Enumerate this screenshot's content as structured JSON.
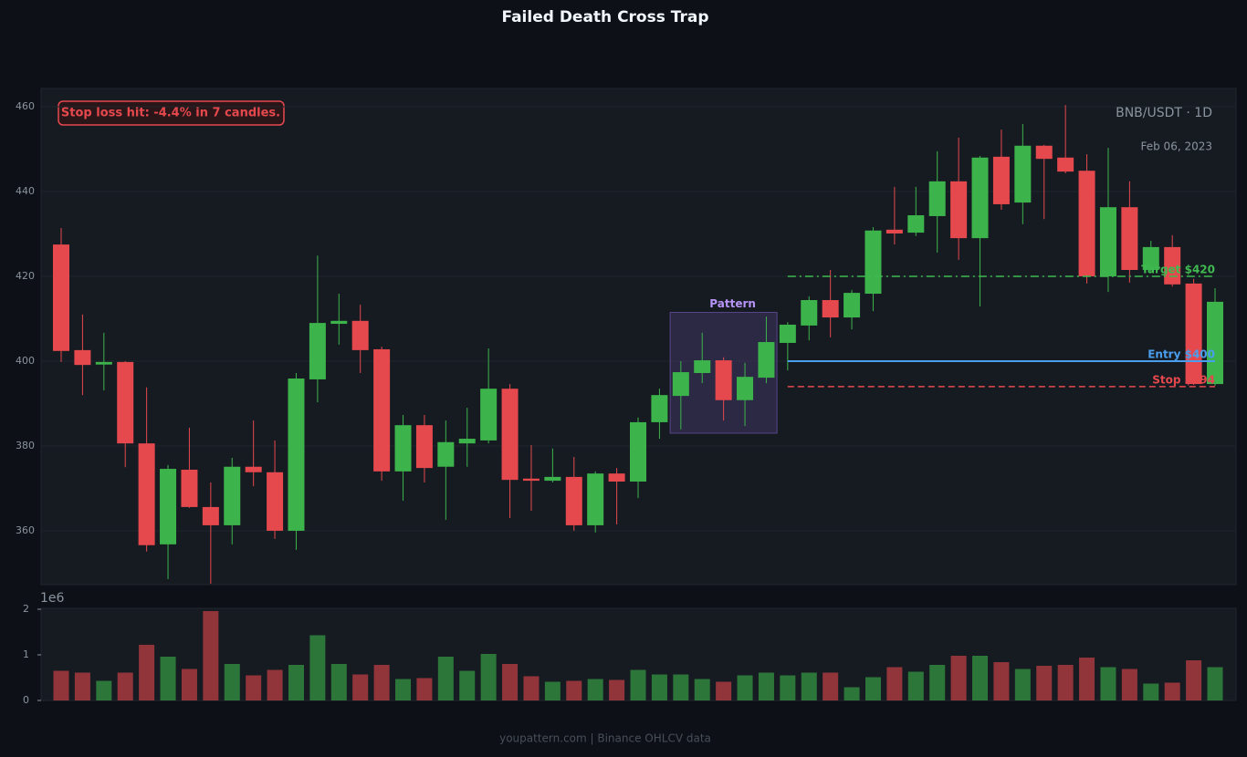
{
  "chart_data": {
    "type": "candlestick",
    "title": "Failed Death Cross Trap",
    "symbol": "BNB/USDT · 1D",
    "date": "Feb 06, 2023",
    "annotation": "Stop loss hit: -4.4% in 7 candles.",
    "footer": "youpattern.com | Binance OHLCV data",
    "up_color": "#3cb44b",
    "down_color": "#e5484d",
    "grid": true,
    "open": [
      427.5,
      402.6,
      399.2,
      399.8,
      380.6,
      356.8,
      374.4,
      365.6,
      361.3,
      375.1,
      373.8,
      360,
      395.7,
      408.8,
      409.5,
      402.8,
      374,
      384.9,
      375.1,
      380.6,
      381.3,
      393.5,
      372.3,
      371.8,
      372.7,
      361.3,
      373.5,
      371.6,
      385.6,
      391.8,
      397.2,
      400.2,
      390.8,
      396.1,
      404.3,
      408.4,
      414.4,
      410.3,
      415.9,
      431,
      430.3,
      434.2,
      442.4,
      429,
      448.2,
      437.4,
      450.8,
      448,
      444.9,
      420,
      436.3,
      421.5,
      426.9,
      418.3,
      394.6
    ],
    "high": [
      431.4,
      411,
      406.7,
      400,
      393.8,
      375.5,
      384.3,
      371.4,
      377.2,
      386,
      381.3,
      397.2,
      424.9,
      415.9,
      413.3,
      403.4,
      387.3,
      387.3,
      386,
      389,
      403,
      394.6,
      380.2,
      379.4,
      377.4,
      374,
      374.8,
      386.7,
      393.5,
      400,
      406.7,
      400.9,
      399.6,
      410.5,
      409.2,
      415.3,
      421.5,
      416.8,
      431.6,
      441.1,
      441.1,
      449.5,
      452.7,
      448.4,
      454.6,
      455.9,
      451,
      460.4,
      448.8,
      450.3,
      442.4,
      428.4,
      429.7,
      419.4,
      417.2
    ],
    "low": [
      399.8,
      392,
      393.1,
      375,
      355.1,
      348.6,
      365.4,
      347.5,
      356.8,
      370.5,
      358.1,
      355.5,
      390.3,
      403.9,
      397.2,
      371.8,
      367.1,
      371.4,
      362.6,
      375.1,
      380.6,
      363,
      364.7,
      371.4,
      360,
      359.6,
      361.5,
      367.7,
      381.7,
      383.9,
      394.8,
      386,
      384.7,
      394.8,
      397.8,
      404.9,
      405.6,
      407.5,
      411.8,
      427.5,
      429.5,
      425.6,
      423.9,
      412.9,
      435.7,
      432.3,
      433.5,
      444.3,
      418.3,
      416.3,
      418.5,
      421,
      417.6,
      394.4,
      394.2
    ],
    "close": [
      402.4,
      399.1,
      399.8,
      380.6,
      356.6,
      374.6,
      365.6,
      361.3,
      375.1,
      373.8,
      360,
      395.9,
      409,
      409.5,
      402.6,
      374,
      384.9,
      374.8,
      380.9,
      381.7,
      393.5,
      372,
      371.8,
      372.7,
      361.3,
      373.5,
      371.6,
      385.6,
      392,
      397.4,
      400.2,
      390.8,
      396.3,
      404.5,
      408.6,
      414.4,
      410.3,
      416.1,
      430.8,
      430.1,
      434.4,
      442.4,
      429,
      448,
      437,
      450.8,
      447.7,
      444.7,
      420,
      436.3,
      421.5,
      426.9,
      418.1,
      394.6,
      414
    ],
    "ylim": [
      347.3,
      464.3
    ],
    "yticks": [
      360,
      380,
      400,
      420,
      440,
      460
    ],
    "pattern": {
      "label": "Pattern",
      "start": 29,
      "end": 33,
      "low": 383,
      "high": 411.5,
      "color": "#7c5cbf"
    },
    "levels": [
      {
        "label": "Target $420",
        "value": 420,
        "color": "#3fb950",
        "dash": "dashdot"
      },
      {
        "label": "Entry $400",
        "value": 400,
        "color": "#4a9eed",
        "dash": "solid"
      },
      {
        "label": "Stop $394",
        "value": 394,
        "color": "#e5484d",
        "dash": "dashed"
      }
    ],
    "volume": {
      "label": "1e6",
      "values": [
        0.65,
        0.61,
        0.43,
        0.61,
        1.22,
        0.96,
        0.69,
        1.96,
        0.8,
        0.55,
        0.67,
        0.78,
        1.43,
        0.8,
        0.57,
        0.78,
        0.47,
        0.49,
        0.96,
        0.65,
        1.02,
        0.8,
        0.53,
        0.41,
        0.43,
        0.47,
        0.45,
        0.67,
        0.57,
        0.57,
        0.47,
        0.41,
        0.55,
        0.61,
        0.55,
        0.61,
        0.61,
        0.29,
        0.51,
        0.73,
        0.63,
        0.78,
        0.98,
        0.98,
        0.84,
        0.69,
        0.76,
        0.78,
        0.94,
        0.73,
        0.69,
        0.37,
        0.39,
        0.88,
        0.73
      ],
      "ylim": [
        0,
        2.02
      ],
      "yticks": [
        0,
        1,
        2
      ]
    }
  }
}
